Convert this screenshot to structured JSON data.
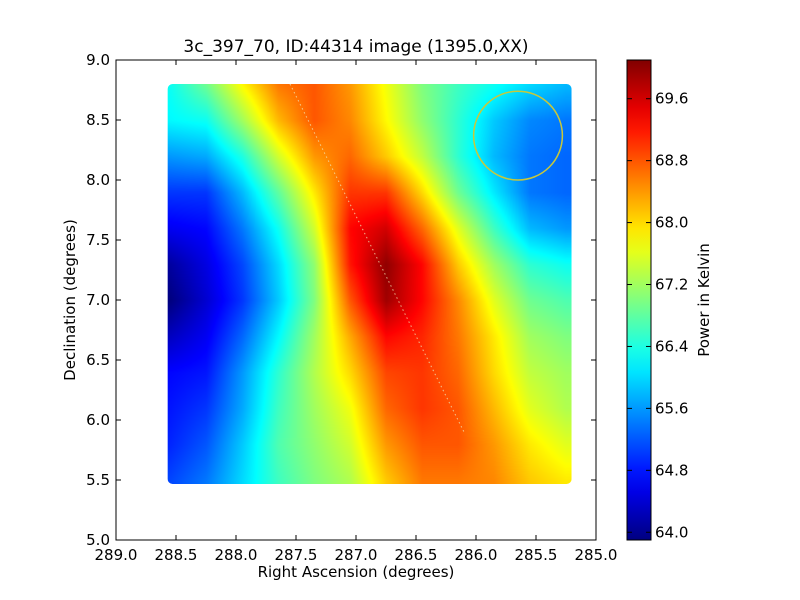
{
  "chart_data": {
    "type": "heatmap",
    "title": "3c_397_70, ID:44314 image (1395.0,XX)",
    "xlabel": "Right Ascension (degrees)",
    "ylabel": "Declination (degrees)",
    "xlim": [
      289.0,
      285.0
    ],
    "ylim": [
      5.0,
      9.0
    ],
    "x_ticks": [
      "289.0",
      "288.5",
      "288.0",
      "287.5",
      "287.0",
      "286.5",
      "286.0",
      "285.5",
      "285.0"
    ],
    "y_ticks": [
      "5.0",
      "5.5",
      "6.0",
      "6.5",
      "7.0",
      "7.5",
      "8.0",
      "8.5",
      "9.0"
    ],
    "data_extent": {
      "ra": [
        288.57,
        285.2
      ],
      "dec": [
        5.47,
        8.8
      ]
    },
    "colormap": "jet",
    "colorbar": {
      "label": "Power in Kelvin",
      "range": [
        63.9,
        70.1
      ],
      "ticks": [
        "64.0",
        "64.8",
        "65.6",
        "66.4",
        "67.2",
        "68.0",
        "68.8",
        "69.6"
      ]
    },
    "grid": false,
    "min_value": {
      "ra": 288.5,
      "dec": 7.0,
      "value": 63.9
    },
    "peak_value": {
      "ra": 286.75,
      "dec": 7.13,
      "value": 70.1
    },
    "overlays": {
      "beam_circle": {
        "ra": 285.65,
        "dec": 8.37,
        "radius_deg": 0.37,
        "color": "#c8c83a"
      },
      "dotted_line": {
        "from": {
          "ra": 287.55,
          "dec": 8.8
        },
        "to": {
          "ra": 286.1,
          "dec": 5.9
        }
      }
    },
    "grid_values": {
      "dec": [
        8.8,
        8.5,
        8.2,
        7.9,
        7.6,
        7.3,
        7.0,
        6.7,
        6.4,
        6.1,
        5.8,
        5.5
      ],
      "ra": [
        288.55,
        288.25,
        287.95,
        287.65,
        287.35,
        287.05,
        286.75,
        286.45,
        286.15,
        285.85,
        285.55,
        285.25
      ],
      "rows": [
        [
          66.3,
          66.9,
          67.8,
          68.6,
          68.8,
          68.4,
          67.7,
          67.0,
          66.6,
          66.3,
          66.0,
          65.8
        ],
        [
          66.2,
          66.3,
          67.2,
          68.2,
          68.8,
          68.5,
          67.8,
          67.1,
          66.5,
          65.9,
          65.5,
          65.4
        ],
        [
          65.6,
          65.7,
          66.4,
          67.5,
          68.4,
          68.7,
          68.1,
          67.4,
          66.5,
          65.8,
          65.4,
          65.3
        ],
        [
          65.0,
          65.0,
          65.8,
          66.8,
          67.9,
          69.0,
          69.0,
          68.0,
          66.9,
          66.1,
          65.4,
          65.3
        ],
        [
          64.6,
          64.7,
          65.4,
          66.3,
          67.5,
          69.3,
          69.6,
          68.7,
          67.6,
          66.6,
          65.8,
          65.6
        ],
        [
          64.1,
          64.5,
          65.1,
          66.0,
          67.1,
          69.2,
          70.0,
          69.3,
          68.1,
          67.2,
          66.5,
          66.3
        ],
        [
          63.9,
          64.4,
          65.0,
          65.9,
          67.0,
          68.8,
          69.9,
          69.3,
          68.5,
          67.6,
          66.9,
          66.7
        ],
        [
          64.3,
          64.6,
          65.3,
          66.2,
          67.2,
          68.3,
          69.3,
          69.1,
          68.6,
          67.9,
          67.2,
          67.0
        ],
        [
          64.7,
          64.8,
          65.6,
          66.5,
          67.3,
          68.0,
          68.9,
          69.0,
          68.7,
          68.0,
          67.4,
          67.2
        ],
        [
          64.8,
          65.0,
          65.7,
          66.6,
          67.2,
          67.7,
          68.7,
          69.0,
          68.8,
          68.2,
          67.6,
          67.3
        ],
        [
          64.9,
          65.2,
          65.9,
          66.7,
          67.1,
          67.5,
          68.4,
          68.8,
          68.8,
          68.4,
          67.9,
          67.6
        ],
        [
          65.1,
          65.4,
          66.0,
          66.6,
          67.0,
          67.3,
          68.1,
          68.6,
          68.6,
          68.5,
          68.1,
          67.9
        ]
      ]
    }
  }
}
